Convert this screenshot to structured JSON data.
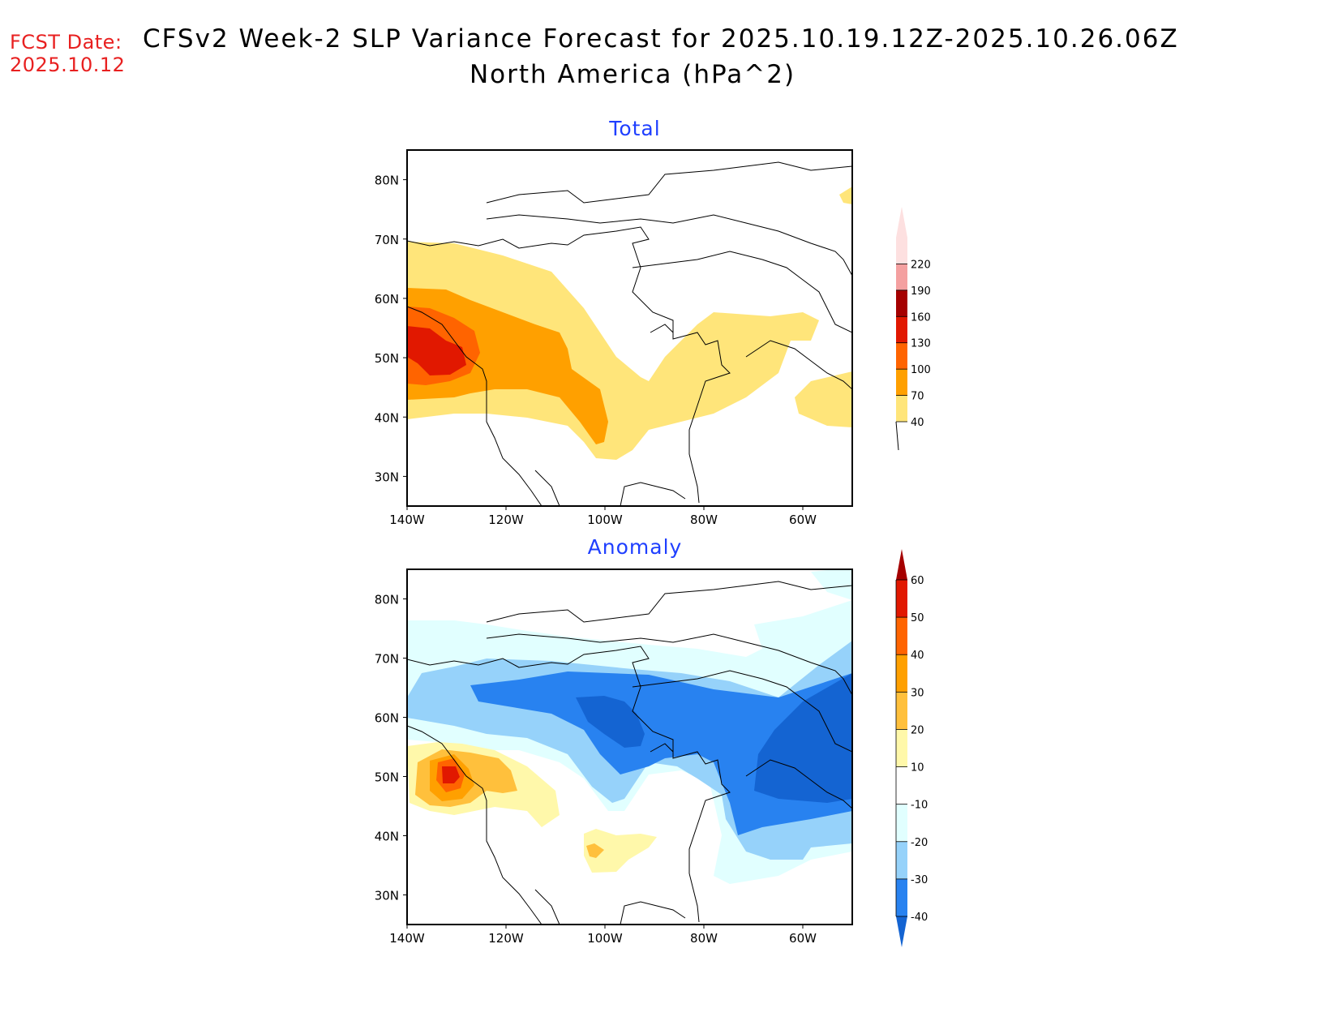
{
  "header": {
    "fcst_label": "FCST Date:",
    "fcst_date": "2025.10.12",
    "title": "CFSv2 Week-2 SLP Variance Forecast for 2025.10.19.12Z-2025.10.26.06Z",
    "subtitle": "North America (hPa^2)"
  },
  "chart_data": [
    {
      "type": "heatmap",
      "title": "Total",
      "xlabel": "",
      "ylabel": "",
      "x_ticks": [
        "140W",
        "120W",
        "100W",
        "80W",
        "60W"
      ],
      "y_ticks": [
        "30N",
        "40N",
        "50N",
        "60N",
        "70N",
        "80N"
      ],
      "xlim": [
        -140,
        -50
      ],
      "ylim": [
        25,
        85
      ],
      "legend": {
        "placement": "right",
        "levels": [
          40,
          70,
          100,
          130,
          160,
          190,
          220
        ],
        "colors": [
          "#ffe57a",
          "#ffa000",
          "#ff6400",
          "#e11800",
          "#a50000",
          "#f4a0a0",
          "#fde0e0"
        ]
      },
      "features": [
        {
          "desc": "max near 52N 135W",
          "value_range": "130-160"
        },
        {
          "desc": "band from Gulf of Alaska SE to 37N 102W",
          "value_range": "70-100"
        },
        {
          "desc": "band across Great Lakes to Quebec",
          "value_range": "40-70"
        }
      ]
    },
    {
      "type": "heatmap",
      "title": "Anomaly",
      "xlabel": "",
      "ylabel": "",
      "x_ticks": [
        "140W",
        "120W",
        "100W",
        "80W",
        "60W"
      ],
      "y_ticks": [
        "30N",
        "40N",
        "50N",
        "60N",
        "70N",
        "80N"
      ],
      "xlim": [
        -140,
        -50
      ],
      "ylim": [
        25,
        85
      ],
      "legend": {
        "placement": "right",
        "levels": [
          -40,
          -30,
          -20,
          -10,
          10,
          20,
          30,
          40,
          50,
          60
        ],
        "colors": [
          "#1464d2",
          "#2882f0",
          "#96d2fa",
          "#e1ffff",
          "#ffffff",
          "#fff8aa",
          "#ffc03c",
          "#ffa000",
          "#ff6400",
          "#e11800",
          "#a50000"
        ]
      },
      "features": [
        {
          "desc": "positive max near 50N 132W",
          "value_range": "50-60"
        },
        {
          "desc": "negative band across Canada 55-65N",
          "value_range": "-40 to -30"
        },
        {
          "desc": "negative max over Quebec/Labrador",
          "value_range": "< -40"
        }
      ]
    }
  ]
}
